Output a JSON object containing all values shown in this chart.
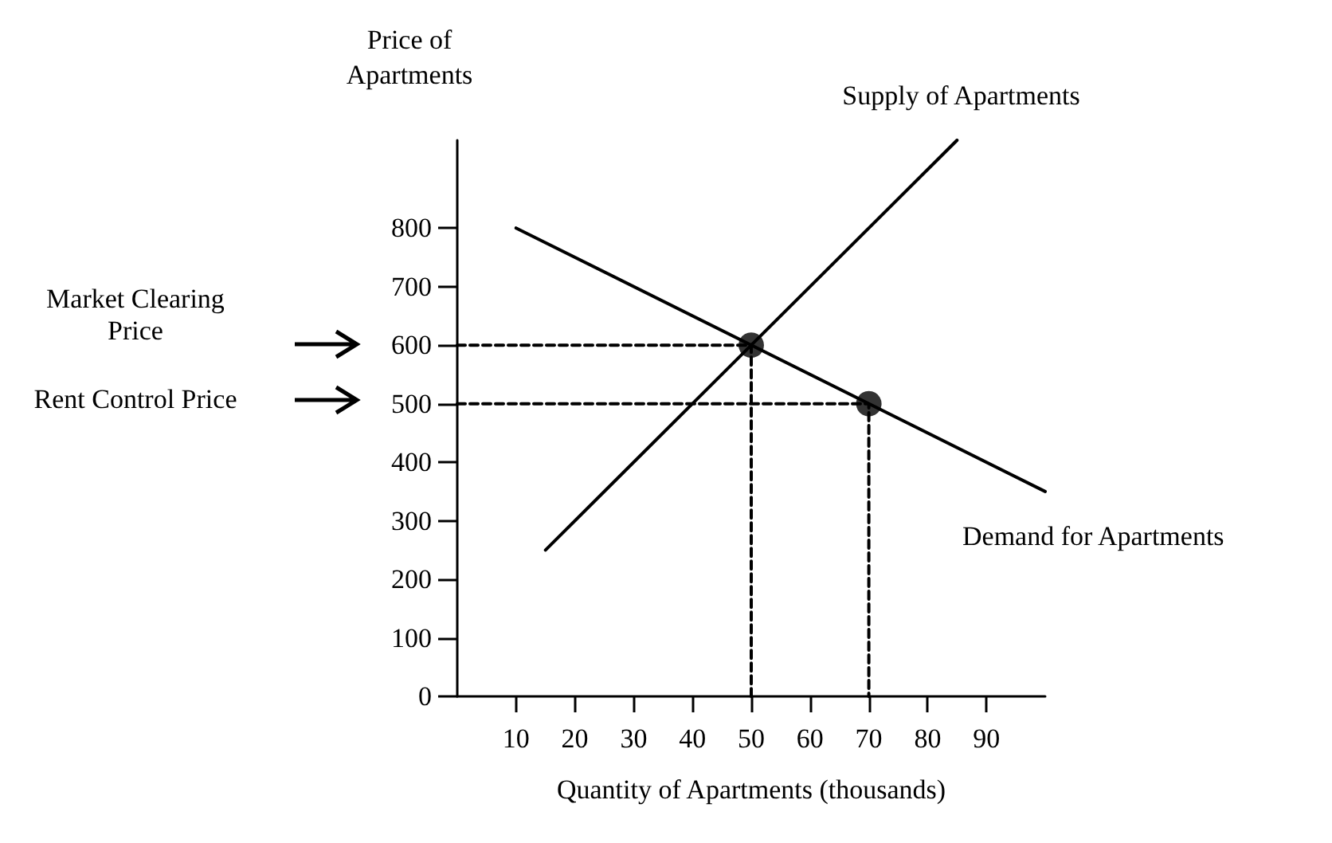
{
  "chart_data": {
    "type": "line",
    "xlabel": "Quantity of Apartments (thousands)",
    "ylabel": "Price of\nApartments",
    "xlim": [
      0,
      100
    ],
    "xticks": [
      10,
      20,
      30,
      40,
      50,
      60,
      70,
      80,
      90
    ],
    "ylim": [
      0,
      950
    ],
    "yticks": [
      0,
      100,
      200,
      300,
      400,
      500,
      600,
      700,
      800
    ],
    "grid": false,
    "legend": false,
    "series": [
      {
        "name": "Supply of Apartments",
        "color": "#000000",
        "x": [
          15,
          85
        ],
        "values": [
          250,
          950
        ],
        "marker": "none",
        "line_style": "solid"
      },
      {
        "name": "Demand for Apartments",
        "color": "#000000",
        "x": [
          10,
          100
        ],
        "values": [
          800,
          350
        ],
        "marker": "none",
        "line_style": "solid"
      },
      {
        "type": "line",
        "color": "#000000",
        "x": [
          0,
          50,
          50
        ],
        "values": [
          600,
          600,
          0
        ],
        "marker": "none",
        "line_style": "dashed"
      },
      {
        "type": "line",
        "color": "#000000",
        "x": [
          0,
          70,
          70
        ],
        "values": [
          500,
          500,
          0
        ],
        "marker": "none",
        "line_style": "dashed"
      },
      {
        "type": "scatter",
        "color": "#000000",
        "x": [
          50,
          70
        ],
        "values": [
          600,
          500
        ],
        "marker": "circle"
      }
    ],
    "annotations": [
      "Market Clearing Price",
      "Rent Control Price"
    ]
  }
}
